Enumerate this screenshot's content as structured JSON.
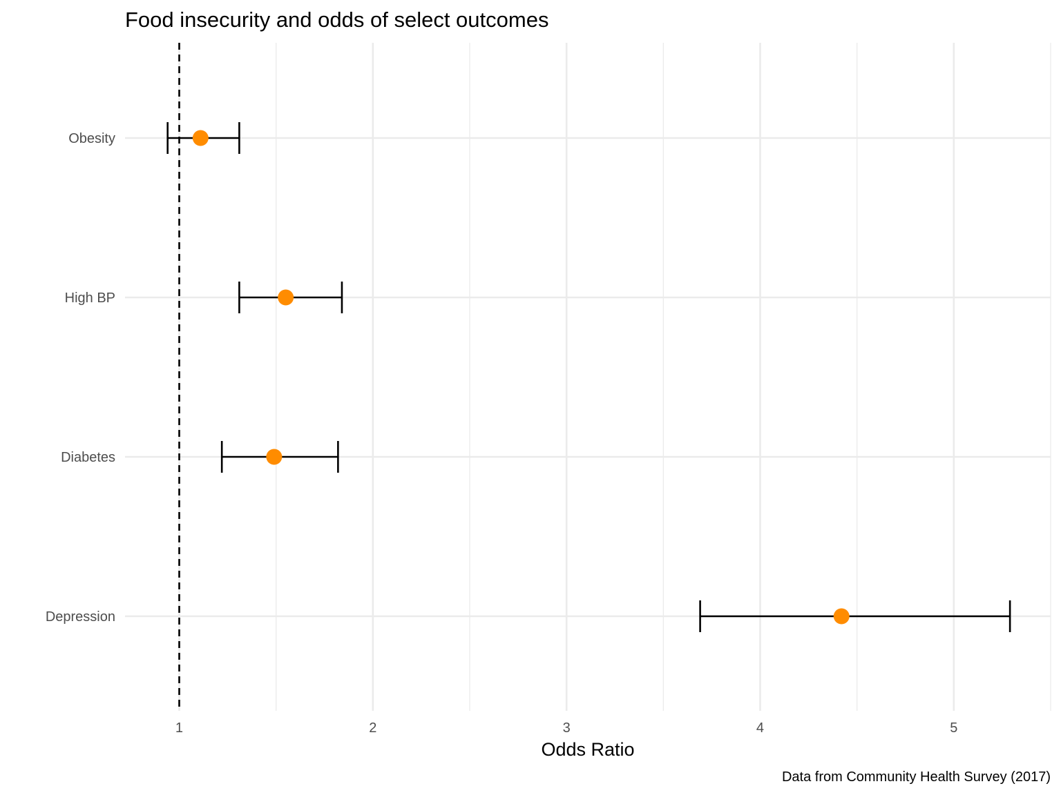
{
  "chart_data": {
    "type": "scatter",
    "subtype": "forest-plot",
    "title": "Food insecurity and odds of select outcomes",
    "xlabel": "Odds Ratio",
    "ylabel": "",
    "caption": "Data from Community Health Survey (2017)",
    "categories": [
      "Obesity",
      "High BP",
      "Diabetes",
      "Depression"
    ],
    "x_ticks": [
      "1",
      "2",
      "3",
      "4",
      "5"
    ],
    "xlim": [
      0.72,
      5.5
    ],
    "reference_line": 1,
    "reference_line_style": "dashed",
    "grid": true,
    "legend": "none",
    "point_color": "#ff8c00",
    "errorbar_color": "#000000",
    "points": [
      {
        "label": "Obesity",
        "estimate": 1.11,
        "lower": 0.94,
        "upper": 1.31
      },
      {
        "label": "High BP",
        "estimate": 1.55,
        "lower": 1.31,
        "upper": 1.84
      },
      {
        "label": "Diabetes",
        "estimate": 1.49,
        "lower": 1.22,
        "upper": 1.82
      },
      {
        "label": "Depression",
        "estimate": 4.42,
        "lower": 3.69,
        "upper": 5.29
      }
    ]
  }
}
